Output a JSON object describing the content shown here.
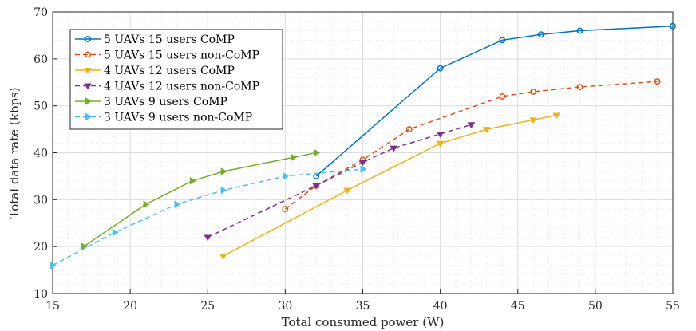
{
  "chart_data": {
    "type": "line",
    "title": "",
    "xlabel": "Total consumed power (W)",
    "ylabel": "Total data rate (kbps)",
    "xlim": [
      15,
      55
    ],
    "ylim": [
      10,
      70
    ],
    "xticks": [
      15,
      20,
      25,
      30,
      35,
      40,
      45,
      50,
      55
    ],
    "yticks": [
      10,
      20,
      30,
      40,
      50,
      60,
      70
    ],
    "grid": true,
    "minor_grid": true,
    "legend_position": "top-left",
    "series": [
      {
        "name": "5 UAVs 15 users CoMP",
        "color": "#0072BD",
        "line_style": "solid",
        "marker": "circle",
        "x": [
          32,
          40,
          44,
          46.5,
          49,
          55
        ],
        "y": [
          35,
          58,
          64,
          65.2,
          66,
          67
        ]
      },
      {
        "name": "5 UAVs 15 users non-CoMP",
        "color": "#D95319",
        "line_style": "dashed",
        "marker": "circle",
        "x": [
          30,
          32,
          35,
          38,
          44,
          46,
          49,
          54
        ],
        "y": [
          28,
          33,
          38.5,
          45,
          52,
          53,
          54,
          55.2
        ]
      },
      {
        "name": "4 UAVs 12 users CoMP",
        "color": "#EDB120",
        "line_style": "solid",
        "marker": "triangle-down",
        "x": [
          26,
          34,
          40,
          43,
          46,
          47.5
        ],
        "y": [
          18,
          32,
          42,
          45,
          47,
          48
        ]
      },
      {
        "name": "4 UAVs 12 users non-CoMP",
        "color": "#7E2F8E",
        "line_style": "dashed",
        "marker": "triangle-down",
        "x": [
          25,
          32,
          35,
          37,
          40,
          42
        ],
        "y": [
          22,
          33,
          38,
          41,
          44,
          46
        ]
      },
      {
        "name": "3 UAVs 9 users CoMP",
        "color": "#77AC30",
        "line_style": "solid",
        "marker": "triangle-right",
        "x": [
          17,
          21,
          24,
          26,
          30.5,
          32
        ],
        "y": [
          20,
          29,
          34,
          36,
          39,
          40
        ]
      },
      {
        "name": "3 UAVs 9 users non-CoMP",
        "color": "#4DBEEE",
        "line_style": "dashed",
        "marker": "triangle-right",
        "x": [
          15,
          19,
          23,
          26,
          30,
          35
        ],
        "y": [
          16,
          23,
          29,
          32,
          35,
          36.5
        ]
      }
    ]
  }
}
